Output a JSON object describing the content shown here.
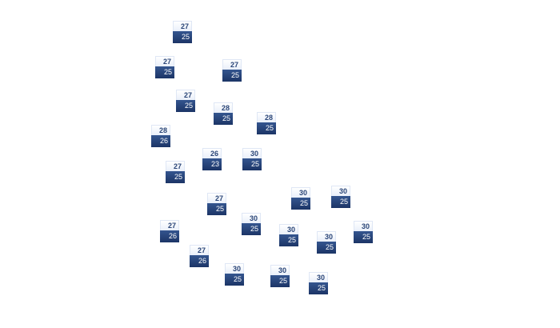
{
  "map": {
    "markers": [
      {
        "high": "27",
        "low": "25"
      },
      {
        "high": "27",
        "low": "25"
      },
      {
        "high": "27",
        "low": "25"
      },
      {
        "high": "27",
        "low": "25"
      },
      {
        "high": "28",
        "low": "25"
      },
      {
        "high": "28",
        "low": "25"
      },
      {
        "high": "28",
        "low": "26"
      },
      {
        "high": "26",
        "low": "23"
      },
      {
        "high": "30",
        "low": "25"
      },
      {
        "high": "27",
        "low": "25"
      },
      {
        "high": "30",
        "low": "25"
      },
      {
        "high": "30",
        "low": "25"
      },
      {
        "high": "27",
        "low": "25"
      },
      {
        "high": "30",
        "low": "25"
      },
      {
        "high": "27",
        "low": "26"
      },
      {
        "high": "30",
        "low": "25"
      },
      {
        "high": "30",
        "low": "25"
      },
      {
        "high": "30",
        "low": "25"
      },
      {
        "high": "27",
        "low": "26"
      },
      {
        "high": "30",
        "low": "25"
      },
      {
        "high": "30",
        "low": "25"
      },
      {
        "high": "30",
        "low": "25"
      }
    ],
    "colors": {
      "high_bg": "#ffffff",
      "low_bg": "#1c3566",
      "high_text": "#2b4678",
      "low_text": "#ffffff"
    }
  }
}
